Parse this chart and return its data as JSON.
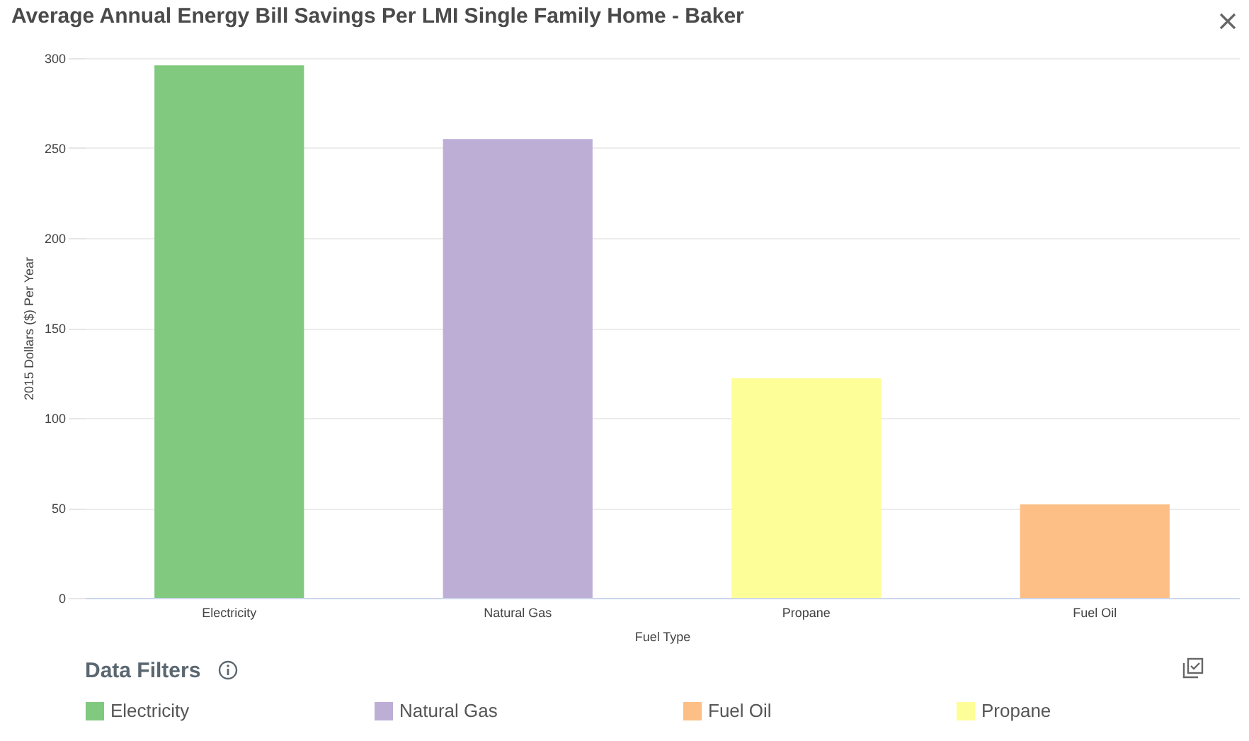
{
  "chart_data": {
    "type": "bar",
    "title": "Average Annual Energy Bill Savings Per LMI Single Family Home - Baker",
    "xlabel": "Fuel Type",
    "ylabel": "2015 Dollars ($) Per Year",
    "legend_title": "Data Filters",
    "categories": [
      "Electricity",
      "Natural Gas",
      "Propane",
      "Fuel Oil"
    ],
    "series": [
      {
        "name": "Electricity",
        "color": "#80c97f",
        "values": [
          296,
          null,
          null,
          null
        ]
      },
      {
        "name": "Natural Gas",
        "color": "#bdaed6",
        "values": [
          null,
          255,
          null,
          null
        ]
      },
      {
        "name": "Fuel Oil",
        "color": "#fdbf86",
        "values": [
          null,
          null,
          null,
          52
        ]
      },
      {
        "name": "Propane",
        "color": "#fefe99",
        "values": [
          null,
          null,
          122,
          null
        ]
      }
    ],
    "ylim": [
      0,
      300
    ],
    "yticks": [
      0,
      50,
      100,
      150,
      200,
      250,
      300
    ],
    "grid": "y",
    "legend": "bottom"
  }
}
